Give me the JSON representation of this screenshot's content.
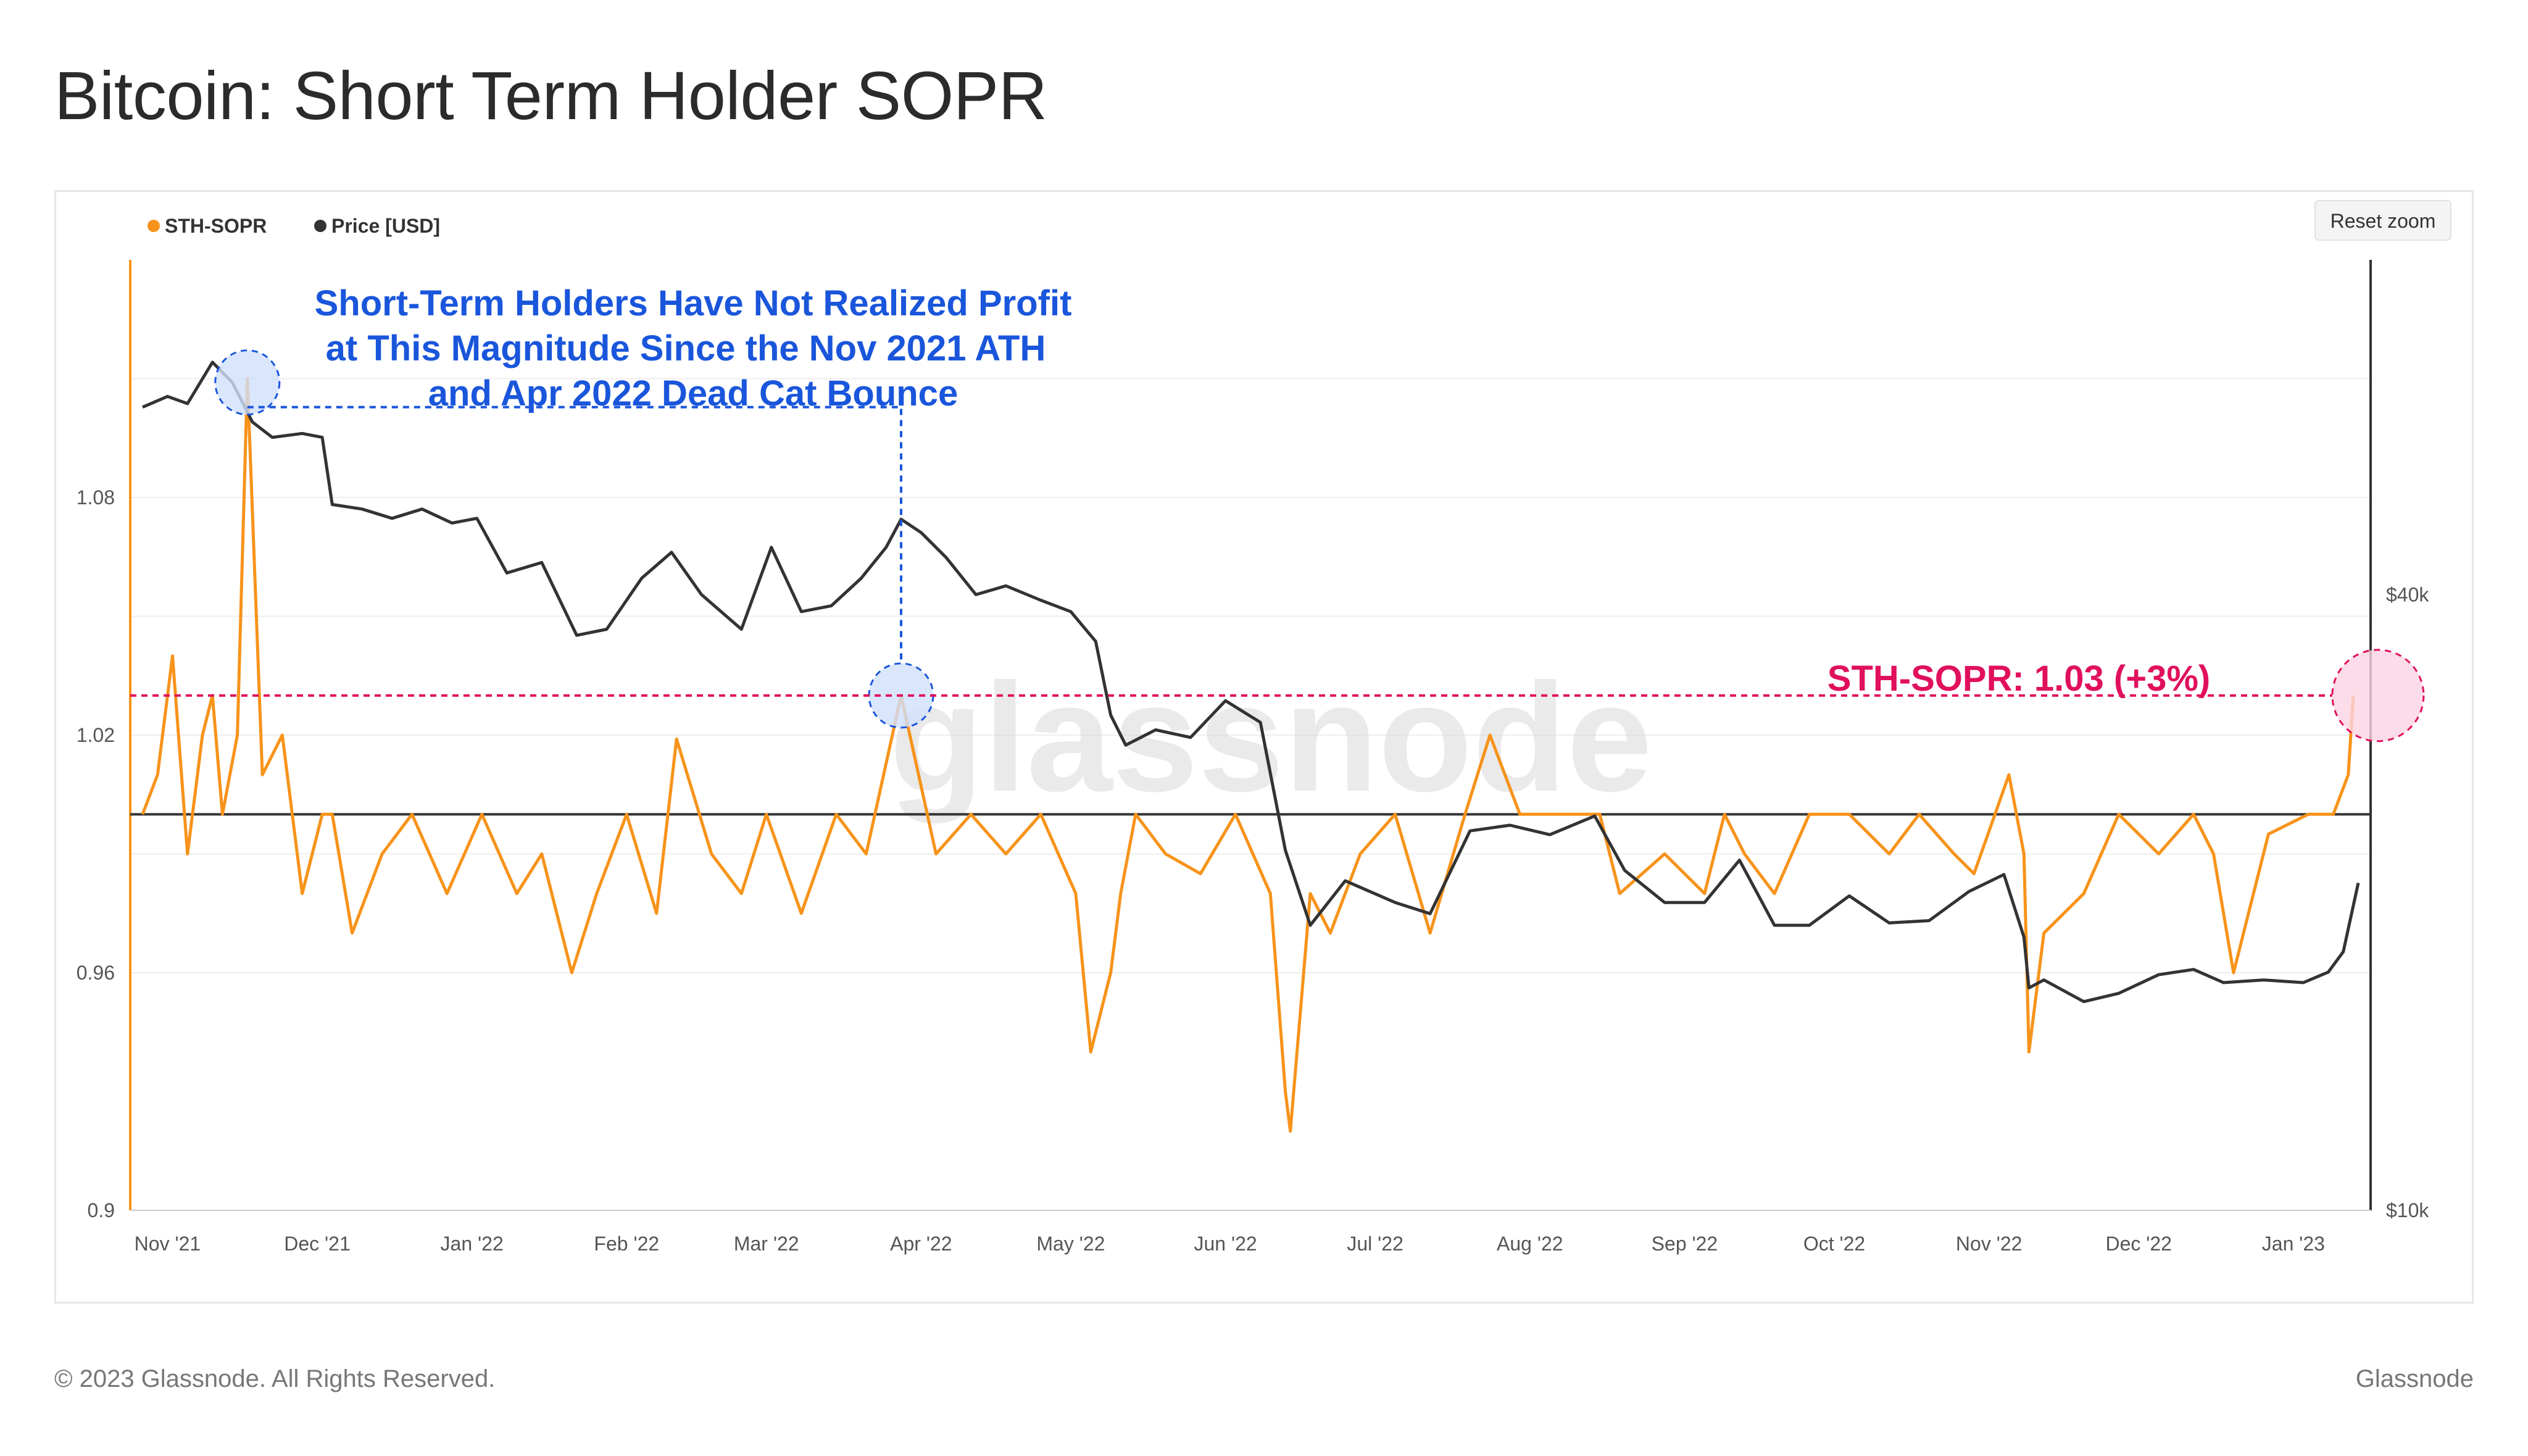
{
  "title": "Bitcoin: Short Term Holder SOPR",
  "footer": {
    "copyright": "© 2023 Glassnode. All Rights Reserved.",
    "brand": "Glassnode"
  },
  "watermark": "glassnode",
  "reset_zoom_label": "Reset zoom",
  "annotations": {
    "blue_line1": "Short-Term Holders Have Not Realized Profit",
    "blue_line2": "at This Magnitude Since the Nov 2021 ATH",
    "blue_line3": "and Apr 2022 Dead Cat Bounce",
    "pink": "STH-SOPR: 1.03 (+3%)"
  },
  "colors": {
    "sopr": "#f7931a",
    "price": "#333333",
    "blue": "#1a56db",
    "pink": "#e0105d"
  },
  "chart_data": {
    "type": "line",
    "title": "Bitcoin: Short Term Holder SOPR",
    "legend": [
      "STH-SOPR",
      "Price [USD]"
    ],
    "legend_position": "top-left",
    "x_ticks": [
      "Nov '21",
      "Dec '21",
      "Jan '22",
      "Feb '22",
      "Mar '22",
      "Apr '22",
      "May '22",
      "Jun '22",
      "Jul '22",
      "Aug '22",
      "Sep '22",
      "Oct '22",
      "Nov '22",
      "Dec '22",
      "Jan '23"
    ],
    "y_left_ticks": [
      "1.08",
      "1.02",
      "0.96",
      "0.9"
    ],
    "y_right_ticks": [
      "$40k",
      "$10k"
    ],
    "left_axis": {
      "min": 0.9,
      "max": 1.14,
      "reference_line": 1.0,
      "scale": "linear"
    },
    "right_axis": {
      "min": 10000,
      "max": 85000,
      "scale": "log"
    },
    "highlight_level": 1.03,
    "series": [
      {
        "name": "STH-SOPR",
        "color": "#f7931a",
        "x": [
          "2021-10-27",
          "2021-10-30",
          "2021-11-02",
          "2021-11-05",
          "2021-11-08",
          "2021-11-10",
          "2021-11-12",
          "2021-11-15",
          "2021-11-17",
          "2021-11-20",
          "2021-11-24",
          "2021-11-28",
          "2021-12-02",
          "2021-12-04",
          "2021-12-08",
          "2021-12-14",
          "2021-12-20",
          "2021-12-27",
          "2022-01-03",
          "2022-01-10",
          "2022-01-15",
          "2022-01-21",
          "2022-01-26",
          "2022-02-01",
          "2022-02-07",
          "2022-02-11",
          "2022-02-18",
          "2022-02-24",
          "2022-03-01",
          "2022-03-08",
          "2022-03-15",
          "2022-03-21",
          "2022-03-28",
          "2022-04-04",
          "2022-04-11",
          "2022-04-18",
          "2022-04-25",
          "2022-05-02",
          "2022-05-05",
          "2022-05-09",
          "2022-05-11",
          "2022-05-14",
          "2022-05-20",
          "2022-05-27",
          "2022-06-03",
          "2022-06-10",
          "2022-06-13",
          "2022-06-14",
          "2022-06-16",
          "2022-06-18",
          "2022-06-22",
          "2022-06-28",
          "2022-07-05",
          "2022-07-12",
          "2022-07-19",
          "2022-07-24",
          "2022-07-30",
          "2022-08-08",
          "2022-08-15",
          "2022-08-19",
          "2022-08-28",
          "2022-09-05",
          "2022-09-09",
          "2022-09-13",
          "2022-09-19",
          "2022-09-26",
          "2022-10-04",
          "2022-10-12",
          "2022-10-18",
          "2022-10-25",
          "2022-10-29",
          "2022-11-05",
          "2022-11-08",
          "2022-11-09",
          "2022-11-12",
          "2022-11-20",
          "2022-11-27",
          "2022-12-05",
          "2022-12-12",
          "2022-12-16",
          "2022-12-20",
          "2022-12-27",
          "2023-01-04",
          "2023-01-09",
          "2023-01-12",
          "2023-01-13"
        ],
        "values": [
          1.0,
          1.01,
          1.04,
          0.99,
          1.02,
          1.03,
          1.0,
          1.02,
          1.11,
          1.01,
          1.02,
          0.98,
          1.0,
          1.0,
          0.97,
          0.99,
          1.0,
          0.98,
          1.0,
          0.98,
          0.99,
          0.96,
          0.98,
          1.0,
          0.975,
          1.019,
          0.99,
          0.98,
          1.0,
          0.975,
          1.0,
          0.99,
          1.03,
          0.99,
          1.0,
          0.99,
          1.0,
          0.98,
          0.94,
          0.96,
          0.98,
          1.0,
          0.99,
          0.985,
          1.0,
          0.98,
          0.93,
          0.92,
          0.95,
          0.98,
          0.97,
          0.99,
          1.0,
          0.97,
          1.0,
          1.02,
          1.0,
          1.0,
          1.0,
          0.98,
          0.99,
          0.98,
          1.0,
          0.99,
          0.98,
          1.0,
          1.0,
          0.99,
          1.0,
          0.99,
          0.985,
          1.01,
          0.99,
          0.94,
          0.97,
          0.98,
          1.0,
          0.99,
          1.0,
          0.99,
          0.96,
          0.995,
          1.0,
          1.0,
          1.01,
          1.03
        ]
      },
      {
        "name": "Price [USD]",
        "color": "#333333",
        "x": [
          "2021-10-27",
          "2021-11-01",
          "2021-11-05",
          "2021-11-10",
          "2021-11-14",
          "2021-11-18",
          "2021-11-22",
          "2021-11-28",
          "2021-12-02",
          "2021-12-04",
          "2021-12-10",
          "2021-12-16",
          "2021-12-22",
          "2021-12-28",
          "2022-01-02",
          "2022-01-08",
          "2022-01-15",
          "2022-01-22",
          "2022-01-28",
          "2022-02-04",
          "2022-02-10",
          "2022-02-16",
          "2022-02-24",
          "2022-03-02",
          "2022-03-08",
          "2022-03-14",
          "2022-03-20",
          "2022-03-25",
          "2022-03-28",
          "2022-04-01",
          "2022-04-06",
          "2022-04-12",
          "2022-04-18",
          "2022-04-25",
          "2022-05-01",
          "2022-05-06",
          "2022-05-09",
          "2022-05-12",
          "2022-05-18",
          "2022-05-25",
          "2022-06-01",
          "2022-06-08",
          "2022-06-13",
          "2022-06-18",
          "2022-06-25",
          "2022-07-05",
          "2022-07-12",
          "2022-07-20",
          "2022-07-28",
          "2022-08-05",
          "2022-08-14",
          "2022-08-20",
          "2022-08-28",
          "2022-09-05",
          "2022-09-12",
          "2022-09-19",
          "2022-09-26",
          "2022-10-04",
          "2022-10-12",
          "2022-10-20",
          "2022-10-28",
          "2022-11-04",
          "2022-11-08",
          "2022-11-09",
          "2022-11-12",
          "2022-11-20",
          "2022-11-27",
          "2022-12-05",
          "2022-12-12",
          "2022-12-18",
          "2022-12-26",
          "2023-01-03",
          "2023-01-08",
          "2023-01-11",
          "2023-01-14"
        ],
        "values": [
          61000,
          62500,
          61500,
          67500,
          64500,
          59000,
          57000,
          57500,
          57000,
          49000,
          48500,
          47500,
          48500,
          47000,
          47500,
          42000,
          43000,
          36500,
          37000,
          41500,
          44000,
          40000,
          37000,
          44500,
          38500,
          39000,
          41500,
          44500,
          47400,
          46000,
          43500,
          40000,
          40800,
          39500,
          38500,
          36000,
          30500,
          28500,
          29500,
          29000,
          31500,
          30000,
          22500,
          19000,
          21000,
          20000,
          19500,
          23500,
          23800,
          23300,
          24300,
          21500,
          20000,
          20000,
          22000,
          19000,
          19000,
          20300,
          19100,
          19200,
          20500,
          21300,
          18500,
          16500,
          16800,
          16000,
          16300,
          17000,
          17200,
          16700,
          16800,
          16700,
          17100,
          17900,
          20900
        ]
      }
    ]
  }
}
